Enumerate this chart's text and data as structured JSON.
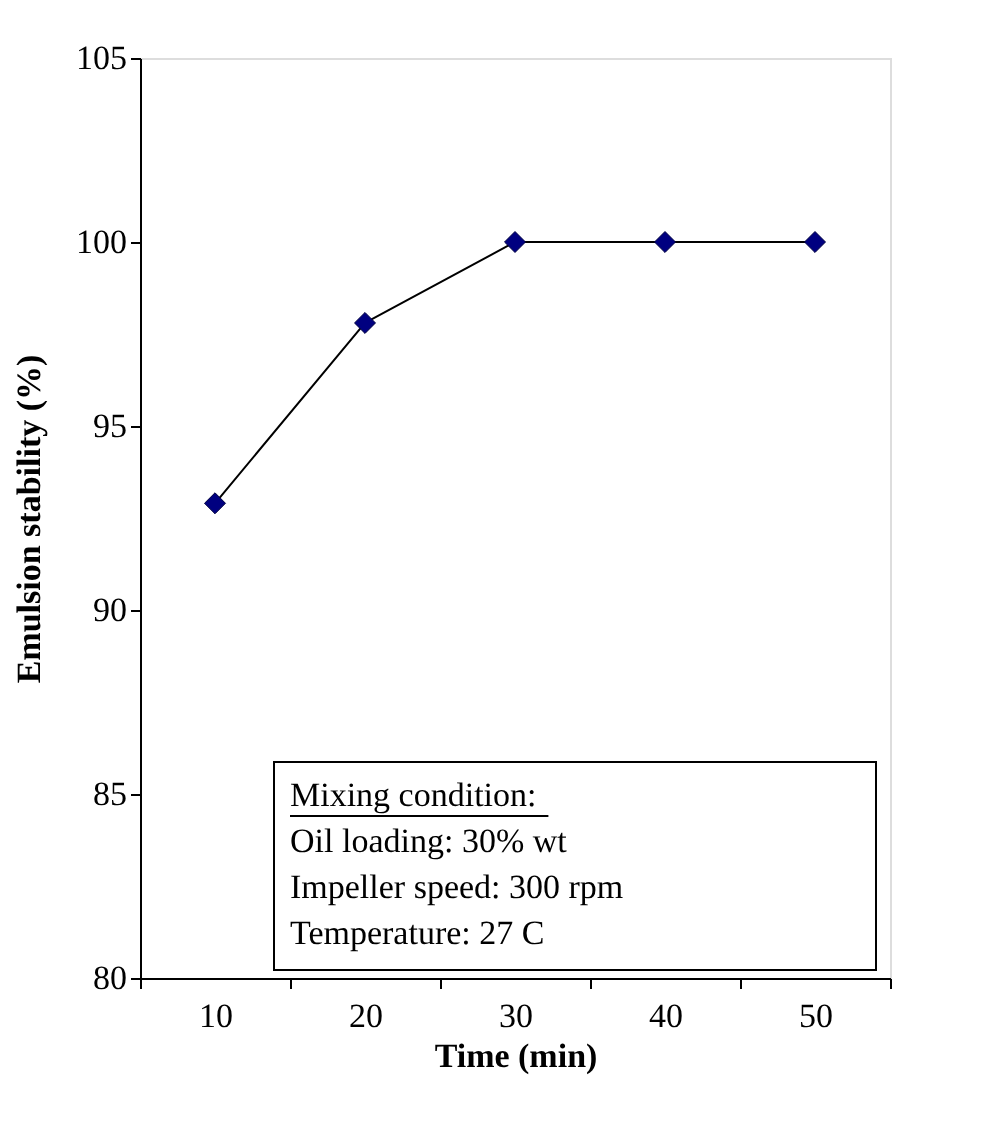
{
  "chart_data": {
    "type": "line",
    "xlabel": "Time (min)",
    "ylabel": "Emulsion stability (%)",
    "categories": [
      "10",
      "20",
      "30",
      "40",
      "50"
    ],
    "series": [
      {
        "color": "#000080",
        "values": [
          92.9,
          97.8,
          100,
          100,
          100
        ]
      }
    ],
    "ylim": [
      80,
      105
    ],
    "yticks": [
      80,
      85,
      90,
      95,
      100,
      105
    ],
    "grid": false,
    "legend": false,
    "marker": "diamond",
    "line_style": "solid",
    "annotations": [
      "Mixing condition:",
      "Oil loading: 30% wt",
      "Impeller speed: 300 rpm",
      "Temperature: 27 C"
    ]
  }
}
